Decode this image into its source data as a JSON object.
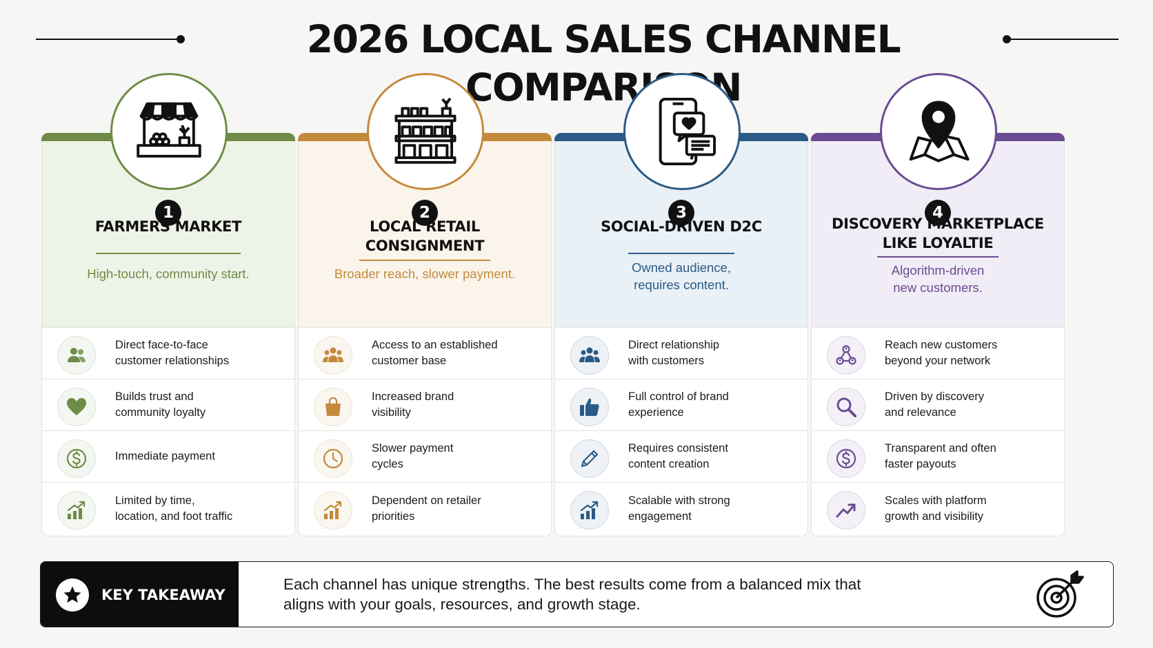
{
  "title": "2026 LOCAL SALES CHANNEL COMPARISON",
  "channels": [
    {
      "number": "1",
      "title": "FARMERS MARKET",
      "subtitle": "High-touch, community start.",
      "accent": "#6e8c47",
      "tint": "#eef3e7",
      "icon": "market-stall-icon",
      "rows": [
        {
          "icon": "people-icon",
          "text": "Direct face-to-face\ncustomer relationships"
        },
        {
          "icon": "heart-icon",
          "text": "Builds trust and\ncommunity loyalty"
        },
        {
          "icon": "dollar-icon",
          "text": "Immediate payment"
        },
        {
          "icon": "growth-chart-icon",
          "text": "Limited by time,\nlocation, and foot traffic"
        }
      ]
    },
    {
      "number": "2",
      "title": "LOCAL RETAIL\nCONSIGNMENT",
      "subtitle": "Broader reach, slower payment.",
      "accent": "#c48a3c",
      "tint": "#faf4ea",
      "icon": "shop-shelf-icon",
      "rows": [
        {
          "icon": "group-icon",
          "text": "Access to an established\ncustomer base"
        },
        {
          "icon": "shopping-bag-icon",
          "text": "Increased brand\nvisibility"
        },
        {
          "icon": "clock-icon",
          "text": "Slower payment\ncycles"
        },
        {
          "icon": "growth-chart-icon",
          "text": "Dependent on retailer\npriorities"
        }
      ]
    },
    {
      "number": "3",
      "title": "SOCIAL-DRIVEN D2C",
      "subtitle": "Owned audience,\nrequires content.",
      "accent": "#2b5a86",
      "tint": "#e9f0f6",
      "icon": "smartphone-chat-icon",
      "rows": [
        {
          "icon": "group-icon",
          "text": "Direct relationship\nwith customers"
        },
        {
          "icon": "thumbs-up-icon",
          "text": "Full control of brand\nexperience"
        },
        {
          "icon": "pencil-icon",
          "text": "Requires consistent\ncontent creation"
        },
        {
          "icon": "growth-chart-icon",
          "text": "Scalable with strong\nengagement"
        }
      ]
    },
    {
      "number": "4",
      "title": "DISCOVERY MARKETPLACE\nLIKE LOYALTIE",
      "subtitle": "Algorithm-driven\nnew customers.",
      "accent": "#6a4b93",
      "tint": "#f1edf6",
      "icon": "map-pin-icon",
      "rows": [
        {
          "icon": "network-icon",
          "text": "Reach new customers\nbeyond your network"
        },
        {
          "icon": "search-icon",
          "text": "Driven by discovery\nand relevance"
        },
        {
          "icon": "dollar-icon",
          "text": "Transparent and often\nfaster payouts"
        },
        {
          "icon": "trend-up-icon",
          "text": "Scales with platform\ngrowth and visibility"
        }
      ]
    }
  ],
  "takeaway": {
    "label": "KEY TAKEAWAY",
    "text": "Each channel has unique strengths. The best results come from a balanced mix that aligns with your goals, resources, and growth stage.",
    "icons": [
      "star-icon",
      "target-icon"
    ]
  }
}
